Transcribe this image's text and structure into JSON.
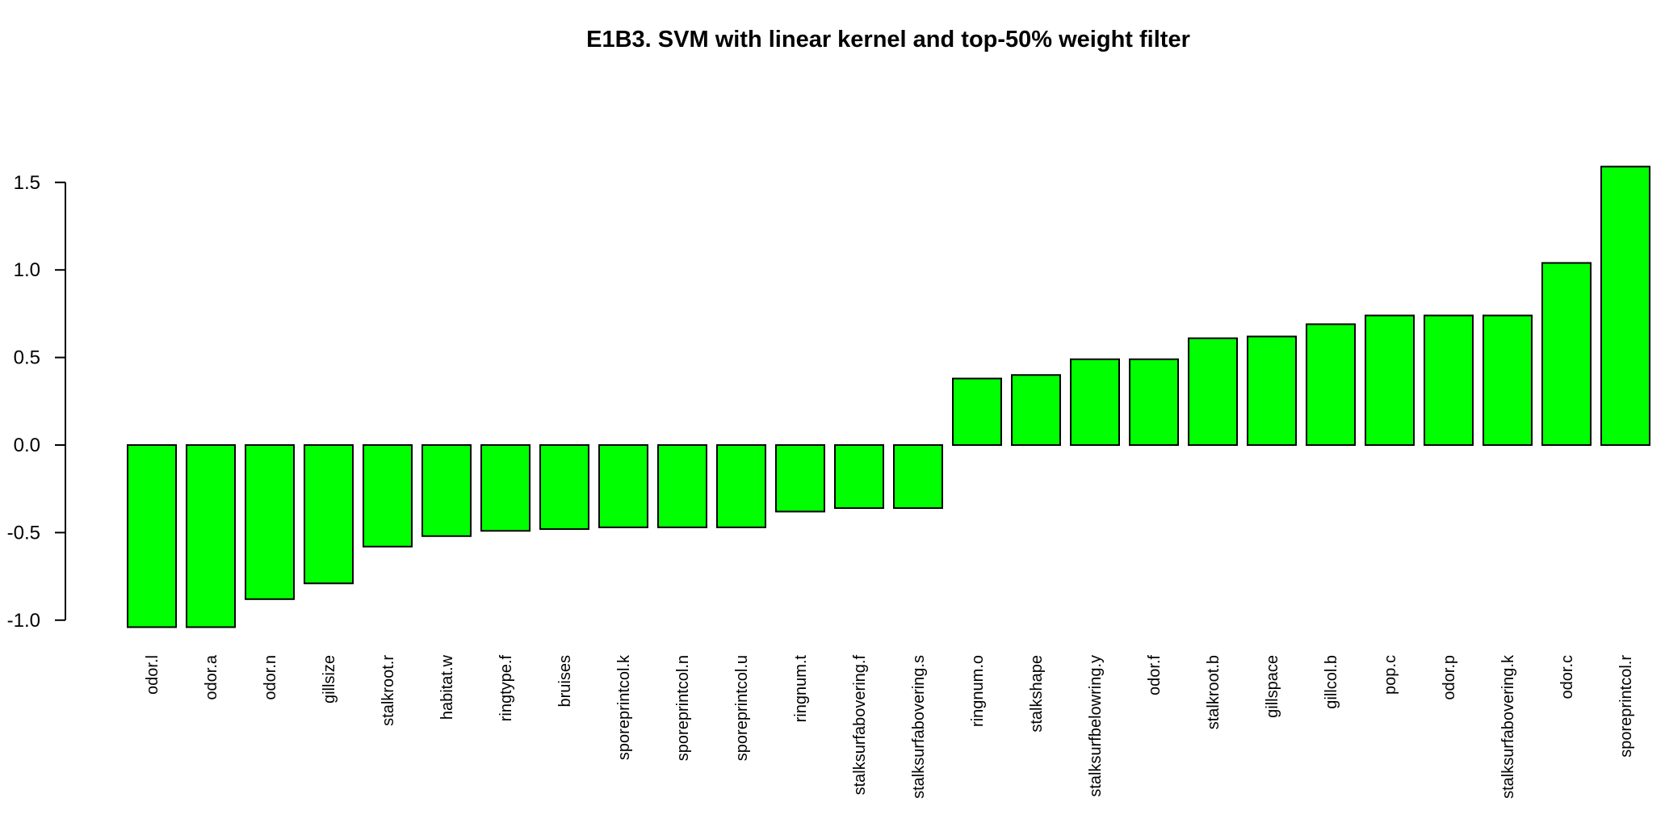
{
  "chart_data": {
    "type": "bar",
    "title": "E1B3. SVM with linear kernel and top-50% weight filter",
    "xlabel": "",
    "ylabel": "",
    "ylim": [
      -1.0,
      1.5
    ],
    "y_ticks": [
      {
        "value": -1.0,
        "label": "-1.0"
      },
      {
        "value": -0.5,
        "label": "-0.5"
      },
      {
        "value": 0.0,
        "label": "0.0"
      },
      {
        "value": 0.5,
        "label": "0.5"
      },
      {
        "value": 1.0,
        "label": "1.0"
      },
      {
        "value": 1.5,
        "label": "1.5"
      }
    ],
    "categories": [
      "odor.l",
      "odor.a",
      "odor.n",
      "gillsize",
      "stalkroot.r",
      "habitat.w",
      "ringtype.f",
      "bruises",
      "sporeprintcol.k",
      "sporeprintcol.n",
      "sporeprintcol.u",
      "ringnum.t",
      "stalksurfabovering.f",
      "stalksurfabovering.s",
      "ringnum.o",
      "stalkshape",
      "stalksurfbelowring.y",
      "odor.f",
      "stalkroot.b",
      "gillspace",
      "gillcol.b",
      "pop.c",
      "odor.p",
      "stalksurfabovering.k",
      "odor.c",
      "sporeprintcol.r"
    ],
    "values": [
      -1.04,
      -1.04,
      -0.88,
      -0.79,
      -0.58,
      -0.52,
      -0.49,
      -0.48,
      -0.47,
      -0.47,
      -0.47,
      -0.38,
      -0.36,
      -0.36,
      0.38,
      0.4,
      0.49,
      0.49,
      0.61,
      0.62,
      0.69,
      0.74,
      0.74,
      0.74,
      1.04,
      1.59
    ],
    "bar_color": "#00ff00",
    "bar_outline": "#000000",
    "grid": false,
    "legend": "none"
  }
}
